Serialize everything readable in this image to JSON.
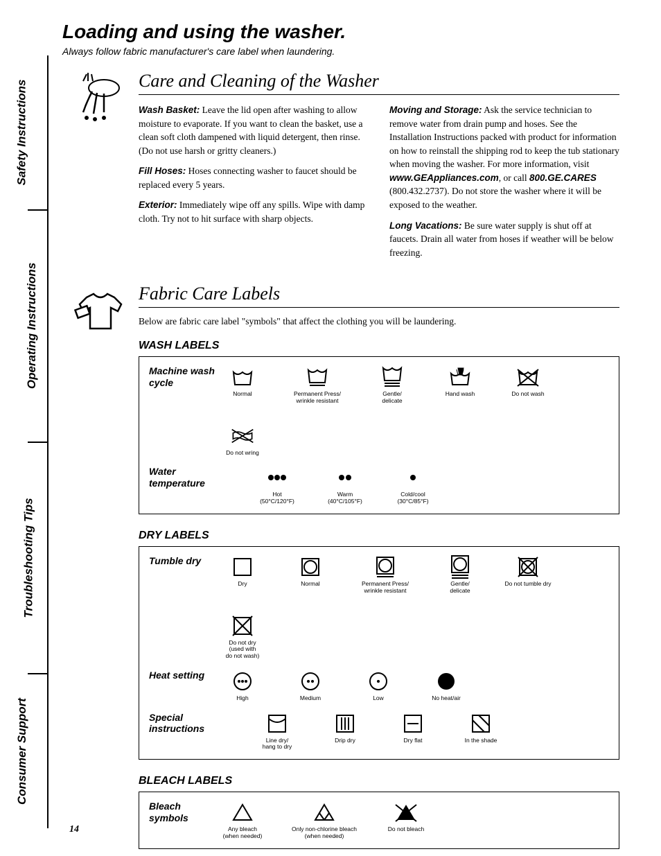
{
  "sideTabs": [
    "Safety Instructions",
    "Operating Instructions",
    "Troubleshooting Tips",
    "Consumer Support"
  ],
  "title": "Loading and using the washer.",
  "subtitle": "Always follow fabric manufacturer's care label when laundering.",
  "care": {
    "heading": "Care and Cleaning of the Washer",
    "left": [
      {
        "lead": "Wash Basket:",
        "text": " Leave the lid open after washing to allow moisture to evaporate. If you want to clean the basket, use a clean soft cloth dampened with liquid detergent, then rinse. (Do not use harsh or gritty cleaners.)"
      },
      {
        "lead": "Fill Hoses:",
        "text": " Hoses connecting washer to faucet should be replaced every 5 years."
      },
      {
        "lead": "Exterior:",
        "text": " Immediately wipe off any spills. Wipe with damp cloth. Try not to hit surface with sharp objects."
      }
    ],
    "right": [
      {
        "lead": "Moving and Storage:",
        "text": " Ask the service technician to remove water from drain pump and hoses. See the Installation Instructions packed with product for information on how to reinstall the shipping rod to keep the tub stationary when moving the washer. For more information, visit ",
        "bold2": "www.GEAppliances.com",
        "text2": ", or call ",
        "bold3": "800.GE.CARES",
        "text3": " (800.432.2737). Do not store the washer where it will be exposed to the weather."
      },
      {
        "lead": "Long Vacations:",
        "text": " Be sure water supply is shut off at faucets. Drain all water from hoses if weather will be below freezing."
      }
    ]
  },
  "fabric": {
    "heading": "Fabric Care Labels",
    "intro": "Below are fabric care label \"symbols\" that affect the clothing you will be laundering.",
    "wash": {
      "heading": "WASH LABELS",
      "rows": [
        {
          "title": "Machine wash cycle",
          "items": [
            "Normal",
            "Permanent Press/\nwrinkle resistant",
            "Gentle/\ndelicate",
            "Hand wash",
            "Do not wash",
            "Do not wring"
          ]
        },
        {
          "title": "Water temperature",
          "items": [
            "Hot\n(50°C/120°F)",
            "Warm\n(40°C/105°F)",
            "Cold/cool\n(30°C/85°F)"
          ]
        }
      ]
    },
    "dry": {
      "heading": "DRY LABELS",
      "rows": [
        {
          "title": "Tumble dry",
          "items": [
            "Dry",
            "Normal",
            "Permanent Press/\nwrinkle resistant",
            "Gentle/\ndelicate",
            "Do not tumble dry",
            "Do not dry\n(used with\ndo not wash)"
          ]
        },
        {
          "title": "Heat setting",
          "items": [
            "High",
            "Medium",
            "Low",
            "No heat/air"
          ]
        },
        {
          "title": "Special instructions",
          "items": [
            "Line dry/\nhang to dry",
            "Drip dry",
            "Dry flat",
            "In the shade"
          ]
        }
      ]
    },
    "bleach": {
      "heading": "BLEACH LABELS",
      "rows": [
        {
          "title": "Bleach symbols",
          "items": [
            "Any bleach\n(when needed)",
            "Only non-chlorine bleach\n(when needed)",
            "Do not bleach"
          ]
        }
      ]
    }
  },
  "pageNum": "14"
}
